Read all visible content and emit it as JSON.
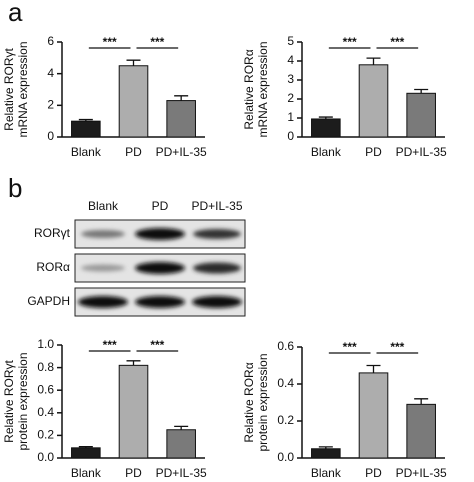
{
  "panel_labels": [
    "a",
    "b"
  ],
  "blot": {
    "columns": [
      "Blank",
      "PD",
      "PD+IL-35"
    ],
    "rows": [
      "RORγt",
      "RORα",
      "GAPDH"
    ]
  },
  "chart_data": [
    {
      "type": "bar",
      "ylabel": [
        "Relative RORγt",
        "mRNA expression"
      ],
      "categories": [
        "Blank",
        "PD",
        "PD+IL-35"
      ],
      "values": [
        1.0,
        4.5,
        2.3
      ],
      "errors": [
        0.1,
        0.35,
        0.3
      ],
      "colors": [
        "#1c1c1c",
        "#adadad",
        "#7a7a7a"
      ],
      "ylim": [
        0,
        6
      ],
      "yticks": [
        0,
        2,
        4,
        6
      ],
      "annotations": [
        "***",
        "***"
      ]
    },
    {
      "type": "bar",
      "ylabel": [
        "Relative RORα",
        "mRNA expression"
      ],
      "categories": [
        "Blank",
        "PD",
        "PD+IL-35"
      ],
      "values": [
        0.95,
        3.8,
        2.3
      ],
      "errors": [
        0.1,
        0.35,
        0.2
      ],
      "colors": [
        "#1c1c1c",
        "#adadad",
        "#7a7a7a"
      ],
      "ylim": [
        0,
        5
      ],
      "yticks": [
        0,
        1,
        2,
        3,
        4,
        5
      ],
      "annotations": [
        "***",
        "***"
      ]
    },
    {
      "type": "bar",
      "ylabel": [
        "Relative RORγt",
        "protein expression"
      ],
      "categories": [
        "Blank",
        "PD",
        "PD+IL-35"
      ],
      "values": [
        0.09,
        0.82,
        0.25
      ],
      "errors": [
        0.01,
        0.04,
        0.03
      ],
      "colors": [
        "#1c1c1c",
        "#adadad",
        "#7a7a7a"
      ],
      "ylim": [
        0,
        1.0
      ],
      "yticks": [
        {
          "value": 0,
          "label": "0.0"
        },
        0.2,
        0.4,
        0.6,
        0.8,
        {
          "value": 1,
          "label": "1.0"
        }
      ],
      "annotations": [
        "***",
        "***"
      ]
    },
    {
      "type": "bar",
      "ylabel": [
        "Relative RORα",
        "protein expression"
      ],
      "categories": [
        "Blank",
        "PD",
        "PD+IL-35"
      ],
      "values": [
        0.05,
        0.46,
        0.29
      ],
      "errors": [
        0.01,
        0.04,
        0.03
      ],
      "colors": [
        "#1c1c1c",
        "#adadad",
        "#7a7a7a"
      ],
      "ylim": [
        0,
        0.6
      ],
      "yticks": [
        {
          "value": 0,
          "label": "0.0"
        },
        0.2,
        0.4,
        0.6
      ],
      "annotations": [
        "***",
        "***"
      ]
    }
  ]
}
